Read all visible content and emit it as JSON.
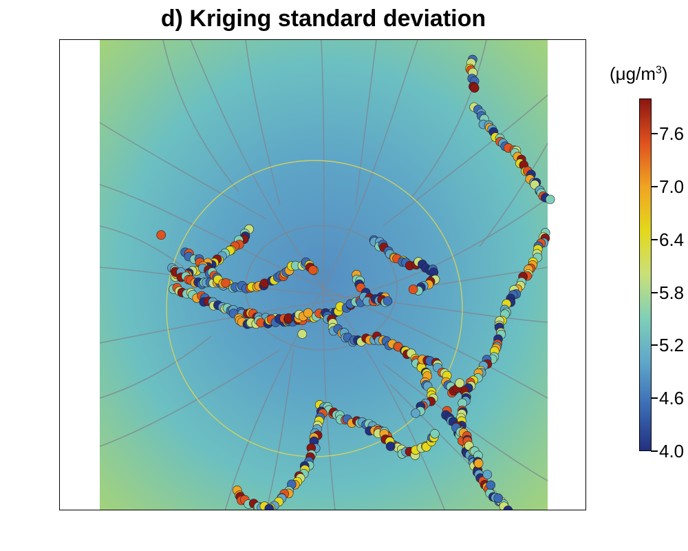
{
  "title": "d) Kriging standard deviation",
  "legend": {
    "unit_prefix": "(μg/m",
    "unit_sup": "3",
    "unit_suffix": ")",
    "min": 4.0,
    "max": 8.0,
    "ticks": [
      "4.0",
      "4.6",
      "5.2",
      "5.8",
      "6.4",
      "7.0",
      "7.6"
    ],
    "tick_values": [
      4.0,
      4.6,
      5.2,
      5.8,
      6.4,
      7.0,
      7.6
    ],
    "colors": [
      "#23307f",
      "#3b6bb4",
      "#5fa6c9",
      "#7ecfb8",
      "#c9e07a",
      "#e3d81c",
      "#f0a423",
      "#e0521e",
      "#8c1612"
    ]
  },
  "map": {
    "background_colors": {
      "center": "#5b9bc6",
      "mid": "#69bcc3",
      "edge": "#9fd17d"
    },
    "road_color": "#7d8590",
    "ring_road_color": "#e8d84a",
    "point_outline": "#222222"
  }
}
